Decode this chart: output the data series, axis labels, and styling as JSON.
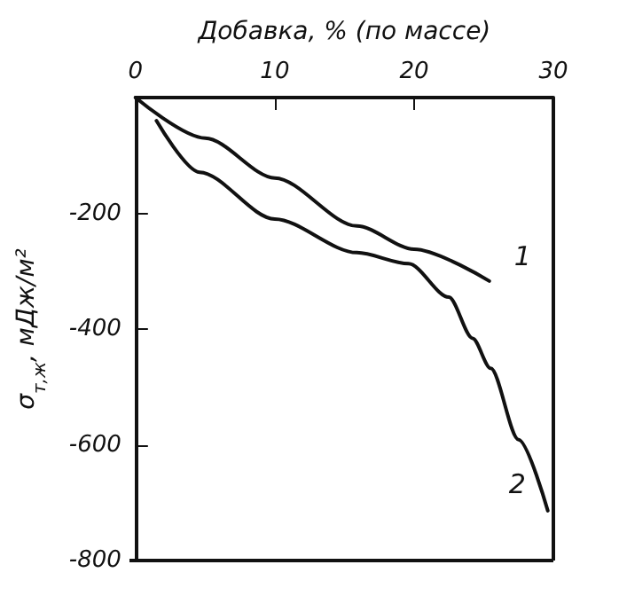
{
  "chart_data": {
    "type": "line",
    "xlabel": "Добавка, % (по массе)",
    "ylabel": "σ$_{т,ж}$, мДж/м²",
    "series": [
      {
        "name": "1",
        "color": "#111111",
        "x": [
          0,
          5,
          10,
          15.9,
          20,
          25.4
        ],
        "values": [
          0,
          -70,
          -139,
          -222,
          -262,
          -317
        ]
      },
      {
        "name": "2",
        "color": "#111111",
        "x": [
          1.5,
          4.6,
          10,
          15.9,
          19.6,
          22.5,
          24.2,
          25.5,
          27.5,
          29.6
        ],
        "values": [
          -40,
          -129,
          -210,
          -268,
          -287,
          -345,
          -416,
          -468,
          -591,
          -714
        ]
      }
    ],
    "xlim": [
      0,
      30
    ],
    "xticks": [
      0,
      10,
      20,
      30
    ],
    "ylim": [
      -800,
      0
    ],
    "yticks": [
      {
        "value": 0,
        "label": null
      },
      -200,
      -400,
      -600,
      -800
    ],
    "grid": false,
    "marker": "none",
    "line_style": "solid"
  }
}
